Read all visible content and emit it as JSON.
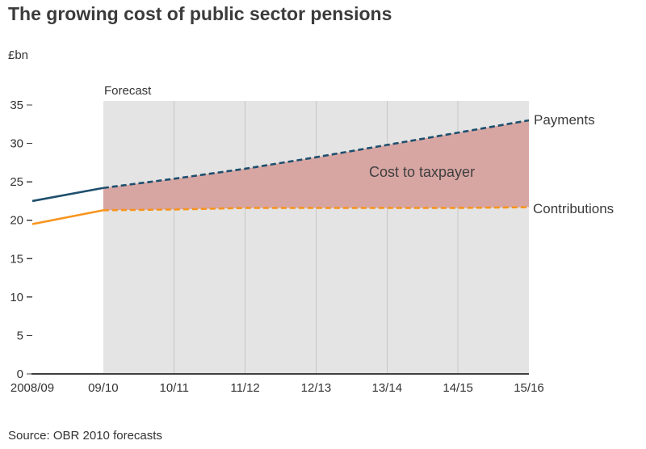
{
  "chart_data": {
    "type": "line",
    "title": "The growing cost of public sector pensions",
    "ylabel": "£bn",
    "source": "Source: OBR 2010 forecasts",
    "x_categories": [
      "2008/09",
      "09/10",
      "10/11",
      "11/12",
      "12/13",
      "13/14",
      "14/15",
      "15/16"
    ],
    "y_ticks": [
      0,
      5,
      10,
      15,
      20,
      25,
      30,
      35
    ],
    "ylim": [
      0,
      35
    ],
    "forecast_start_index": 1,
    "annotations": {
      "forecast": "Forecast",
      "cost_to_taxpayer": "Cost to taxpayer"
    },
    "series": [
      {
        "name": "Payments",
        "color": "#1e4f6d",
        "line_style": "solid before forecast, dashed in forecast",
        "values": [
          22.5,
          24.2,
          25.4,
          26.7,
          28.2,
          29.8,
          31.4,
          33.0
        ]
      },
      {
        "name": "Contributions",
        "color": "#f7941d",
        "line_style": "solid before forecast, dashed in forecast",
        "values": [
          19.5,
          21.3,
          21.4,
          21.6,
          21.6,
          21.6,
          21.6,
          21.7
        ]
      }
    ],
    "shaded_region": {
      "label": "Cost to taxpayer",
      "between": [
        "Payments",
        "Contributions"
      ],
      "from_category": "09/10",
      "color": "#d7a6a3"
    },
    "colors": {
      "forecast_band": "#e4e4e4",
      "grid": "#c6c6c6",
      "axis": "#404040",
      "tick_text": "#333333"
    },
    "legend_position": "right-of-line-ends",
    "grid": "vertical-in-forecast-only"
  }
}
